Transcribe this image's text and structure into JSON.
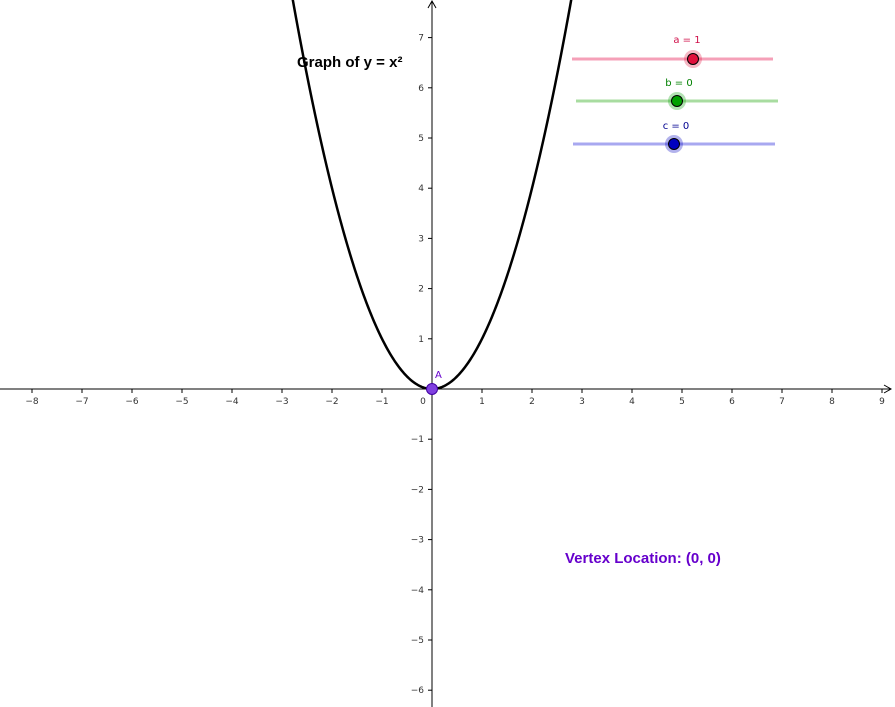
{
  "graph": {
    "title": "Graph of y = x²",
    "function": "x^2",
    "curve_color": "#000000",
    "axes_color": "#000000",
    "x_ticks": [
      "−8",
      "−7",
      "−6",
      "−5",
      "−4",
      "−3",
      "−2",
      "−1",
      "0",
      "1",
      "2",
      "3",
      "4",
      "5",
      "6",
      "7",
      "8",
      "9"
    ],
    "y_ticks": [
      "7",
      "6",
      "5",
      "4",
      "3",
      "2",
      "1",
      "−1",
      "−2",
      "−3",
      "−4",
      "−5",
      "−6"
    ]
  },
  "point_a": {
    "label": "A",
    "x": 0,
    "y": 0,
    "color": "#6600cc"
  },
  "vertex": {
    "text": "Vertex Location: (0, 0)",
    "color": "#6600cc"
  },
  "sliders": [
    {
      "id": "a",
      "label": "a = 1",
      "value": 1,
      "min": -5,
      "max": 5,
      "position_fraction": 0.6,
      "line_color": "#f5a0b8",
      "knob_color": "#e0103c",
      "label_color": "#d0104a"
    },
    {
      "id": "b",
      "label": "b = 0",
      "value": 0,
      "min": -5,
      "max": 5,
      "position_fraction": 0.5,
      "line_color": "#a8dca0",
      "knob_color": "#00a000",
      "label_color": "#008000"
    },
    {
      "id": "c",
      "label": "c = 0",
      "value": 0,
      "min": -5,
      "max": 5,
      "position_fraction": 0.5,
      "line_color": "#a8a8f0",
      "knob_color": "#0000c0",
      "label_color": "#000090"
    }
  ]
}
